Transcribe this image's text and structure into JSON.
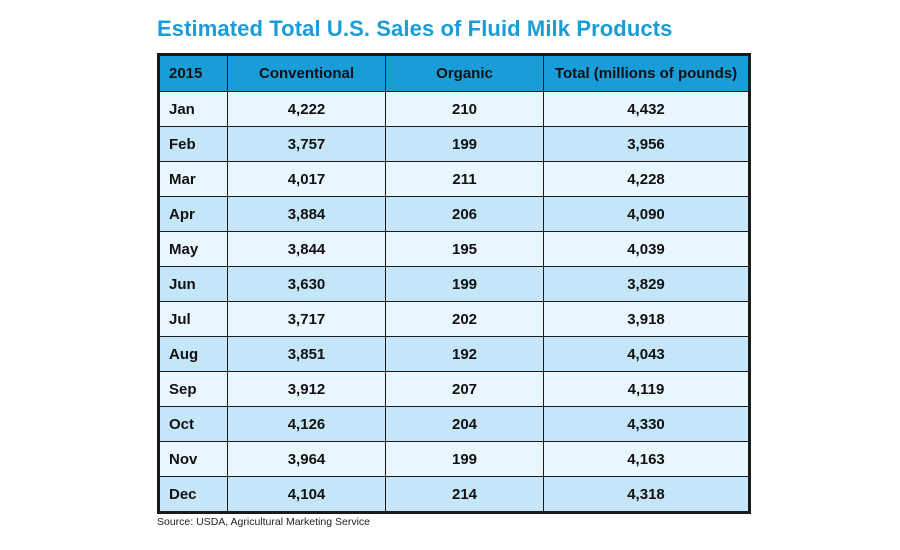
{
  "title": "Estimated Total U.S. Sales of Fluid Milk Products",
  "source": "Source: USDA, Agricultural Marketing Service",
  "colors": {
    "header": "#1a9cd8",
    "title": "#1a9cd8",
    "row_light": "#eaf6fd",
    "row_dark": "#c4e6f8"
  },
  "chart_data": {
    "type": "table",
    "title": "Estimated Total U.S. Sales of Fluid Milk Products",
    "columns": [
      "2015",
      "Conventional",
      "Organic",
      "Total (millions of pounds)"
    ],
    "rows": [
      [
        "Jan",
        "4,222",
        "210",
        "4,432"
      ],
      [
        "Feb",
        "3,757",
        "199",
        "3,956"
      ],
      [
        "Mar",
        "4,017",
        "211",
        "4,228"
      ],
      [
        "Apr",
        "3,884",
        "206",
        "4,090"
      ],
      [
        "May",
        "3,844",
        "195",
        "4,039"
      ],
      [
        "Jun",
        "3,630",
        "199",
        "3,829"
      ],
      [
        "Jul",
        "3,717",
        "202",
        "3,918"
      ],
      [
        "Aug",
        "3,851",
        "192",
        "4,043"
      ],
      [
        "Sep",
        "3,912",
        "207",
        "4,119"
      ],
      [
        "Oct",
        "4,126",
        "204",
        "4,330"
      ],
      [
        "Nov",
        "3,964",
        "199",
        "4,163"
      ],
      [
        "Dec",
        "4,104",
        "214",
        "4,318"
      ]
    ]
  }
}
